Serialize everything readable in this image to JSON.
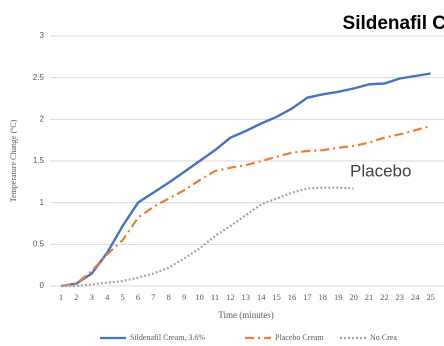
{
  "chart_data": {
    "type": "line",
    "title": "Sildenafil C",
    "annotation": "Placebo",
    "xlabel": "Time (minutes)",
    "ylabel": "Temperature Change (°C)",
    "categories": [
      "1",
      "2",
      "3",
      "4",
      "5",
      "6",
      "7",
      "8",
      "9",
      "10",
      "11",
      "12",
      "13",
      "14",
      "15",
      "16",
      "17",
      "18",
      "19",
      "20",
      "21",
      "22",
      "23",
      "24",
      "25"
    ],
    "series": [
      {
        "name": "Sildenafil Cream, 3.6%",
        "color": "#4472c4",
        "dash": "solid",
        "values": [
          0,
          0.03,
          0.15,
          0.4,
          0.72,
          1.0,
          1.12,
          1.24,
          1.37,
          1.5,
          1.63,
          1.78,
          1.86,
          1.95,
          2.03,
          2.13,
          2.26,
          2.3,
          2.33,
          2.37,
          2.42,
          2.43,
          2.49,
          2.52,
          2.55
        ]
      },
      {
        "name": "Placebo Cream",
        "color": "#ed7d31",
        "dash": "dashdot",
        "values": [
          0,
          0.03,
          0.18,
          0.38,
          0.55,
          0.82,
          0.95,
          1.05,
          1.15,
          1.27,
          1.38,
          1.42,
          1.45,
          1.5,
          1.55,
          1.6,
          1.62,
          1.63,
          1.66,
          1.68,
          1.72,
          1.78,
          1.82,
          1.87,
          1.92
        ]
      },
      {
        "name": "No Crea",
        "color": "#a5a5a5",
        "dash": "dot",
        "values": [
          0,
          0,
          0.02,
          0.04,
          0.06,
          0.1,
          0.15,
          0.22,
          0.33,
          0.45,
          0.6,
          0.72,
          0.85,
          0.98,
          1.05,
          1.12,
          1.17,
          1.18,
          1.18,
          1.17,
          null,
          null,
          null,
          null,
          null
        ]
      }
    ],
    "ylim": [
      0,
      3
    ],
    "yticks": [
      0,
      0.5,
      1,
      1.5,
      2,
      2.5,
      3
    ],
    "grid": true
  }
}
